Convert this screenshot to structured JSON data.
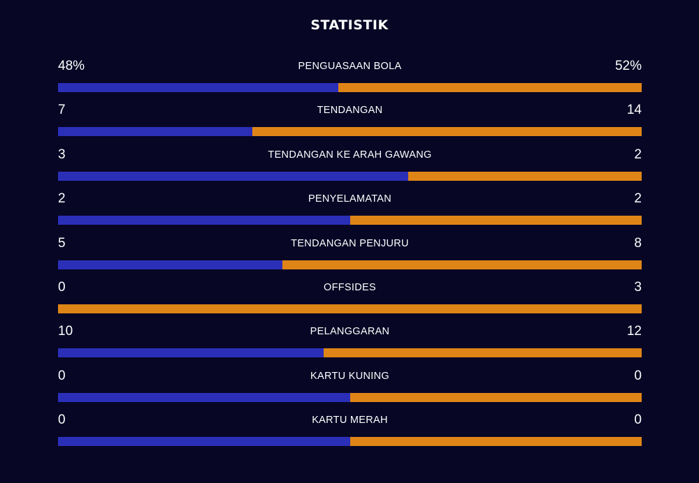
{
  "title": "STATISTIK",
  "colors": {
    "background": "#070625",
    "home": "#2b2fb8",
    "away": "#df8517"
  },
  "stats": [
    {
      "label": "PENGUASAAN BOLA",
      "home": "48%",
      "away": "52%",
      "home_value": 48,
      "away_value": 52
    },
    {
      "label": "TENDANGAN",
      "home": "7",
      "away": "14",
      "home_value": 7,
      "away_value": 14
    },
    {
      "label": "TENDANGAN KE ARAH GAWANG",
      "home": "3",
      "away": "2",
      "home_value": 3,
      "away_value": 2
    },
    {
      "label": "PENYELAMATAN",
      "home": "2",
      "away": "2",
      "home_value": 2,
      "away_value": 2
    },
    {
      "label": "TENDANGAN PENJURU",
      "home": "5",
      "away": "8",
      "home_value": 5,
      "away_value": 8
    },
    {
      "label": "OFFSIDES",
      "home": "0",
      "away": "3",
      "home_value": 0,
      "away_value": 3
    },
    {
      "label": "PELANGGARAN",
      "home": "10",
      "away": "12",
      "home_value": 10,
      "away_value": 12
    },
    {
      "label": "KARTU KUNING",
      "home": "0",
      "away": "0",
      "home_value": 0,
      "away_value": 0
    },
    {
      "label": "KARTU MERAH",
      "home": "0",
      "away": "0",
      "home_value": 0,
      "away_value": 0
    }
  ]
}
